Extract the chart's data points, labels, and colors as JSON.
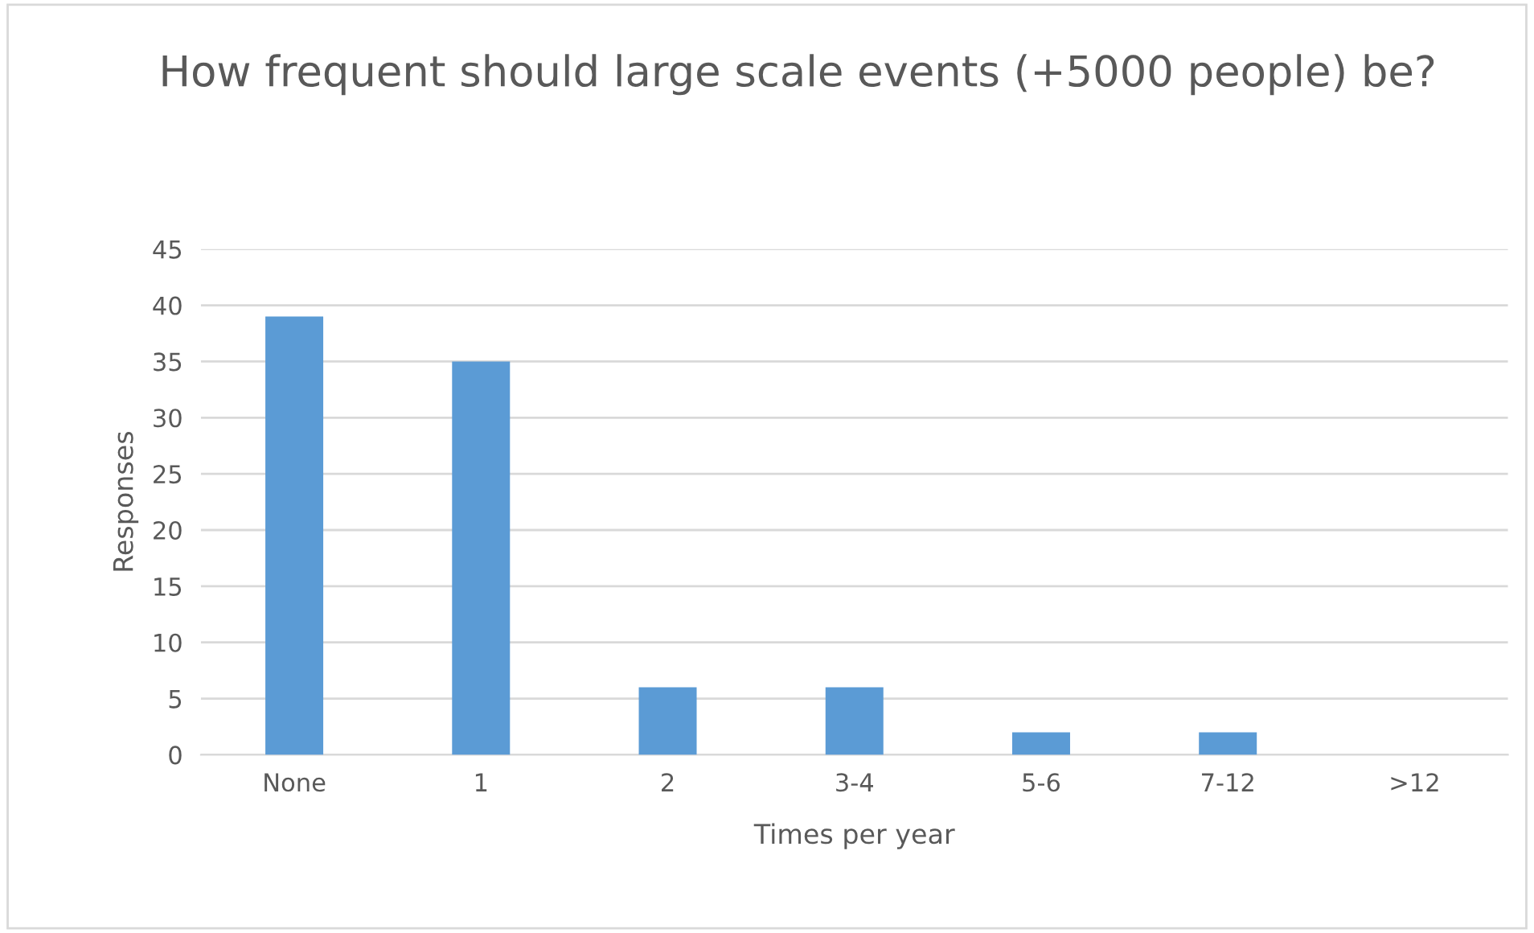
{
  "chart_data": {
    "type": "bar",
    "title": "How frequent should large scale events (+5000 people) be?",
    "xlabel": "Times per year",
    "ylabel": "Responses",
    "categories": [
      "None",
      "1",
      "2",
      "3-4",
      "5-6",
      "7-12",
      ">12"
    ],
    "values": [
      39,
      35,
      6,
      6,
      2,
      2,
      0
    ],
    "color": "#5b9bd5",
    "ylim": [
      0,
      45
    ],
    "yticks": [
      0,
      5,
      10,
      15,
      20,
      25,
      30,
      35,
      40,
      45
    ],
    "grid": "y"
  }
}
